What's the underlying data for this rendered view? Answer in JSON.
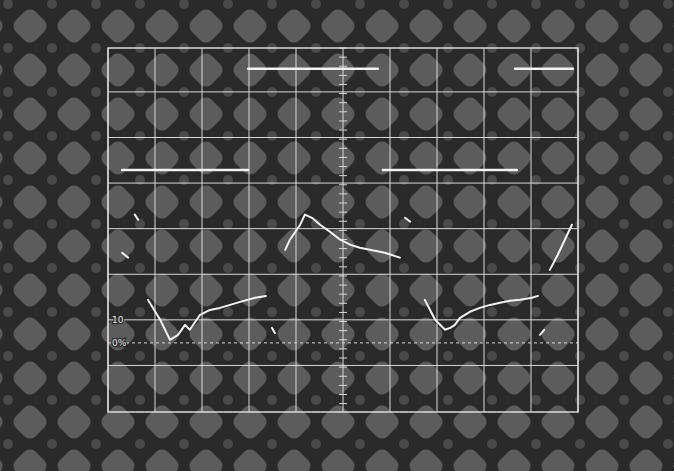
{
  "chart_data": {
    "type": "line",
    "xlim": [
      0,
      10
    ],
    "xticks": [
      0,
      1,
      2,
      3,
      4,
      5,
      6,
      7,
      8,
      9,
      10
    ],
    "ylim": [
      -30,
      128
    ],
    "yticks": [
      {
        "value": 0,
        "label": "0%"
      },
      10
    ],
    "grid": true,
    "tick_labels": "y",
    "color": "#f2f2f2",
    "series": [
      {
        "line_style": "solid",
        "x": [
          0.3,
          2.98,
          2.98,
          2.98,
          5.74,
          5.8,
          5.85,
          8.7,
          8.7,
          8.66,
          9.89
        ],
        "values": [
          75,
          75,
          null,
          119,
          119,
          null,
          75,
          75,
          null,
          119,
          119
        ]
      },
      {
        "line_style": "solid",
        "x": [
          0.3,
          0.43,
          0.5,
          0.57,
          0.64,
          0.75,
          0.85,
          1.11,
          1.32,
          1.49,
          1.64,
          1.74,
          1.96,
          2.17,
          2.38,
          2.6,
          2.81,
          3.13,
          3.36,
          3.42,
          3.49,
          3.55,
          3.66,
          3.77,
          3.87,
          4.09,
          4.19,
          4.34,
          4.51,
          4.72,
          4.94,
          5.15,
          5.36,
          5.57,
          5.89,
          6.21,
          6.27,
          6.32,
          6.43,
          6.6,
          6.74,
          6.96,
          7.17,
          7.28,
          7.38,
          7.49,
          7.7,
          7.91,
          8.13,
          8.34,
          8.55,
          8.77,
          9.02,
          9.15,
          9.17,
          9.19,
          9.28,
          9.34,
          9.4,
          9.57,
          9.87
        ],
        "values": [
          39.1,
          37.0,
          null,
          55.7,
          53.5,
          null,
          18.7,
          10.0,
          1.3,
          3.5,
          7.8,
          5.7,
          12.2,
          14.3,
          15.2,
          16.5,
          17.8,
          19.6,
          20.4,
          null,
          6.5,
          4.3,
          null,
          40.4,
          44.8,
          51.3,
          55.7,
          54.3,
          51.3,
          48.3,
          44.8,
          42.6,
          41.3,
          40.4,
          39.1,
          37.0,
          null,
          54.3,
          52.6,
          null,
          18.7,
          10.0,
          5.7,
          6.5,
          7.8,
          10.9,
          13.5,
          15.2,
          16.5,
          17.4,
          18.3,
          18.7,
          19.6,
          20.4,
          null,
          3.5,
          5.7,
          null,
          31.7,
          38.3,
          51.3
        ]
      }
    ]
  }
}
